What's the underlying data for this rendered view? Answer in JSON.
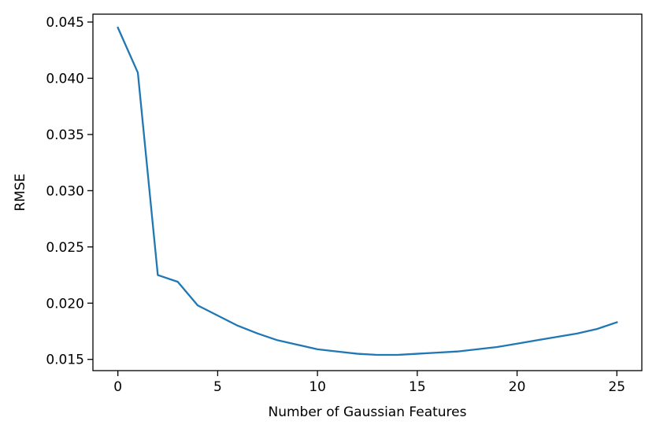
{
  "chart_data": {
    "type": "line",
    "title": "",
    "xlabel": "Number of Gaussian Features",
    "ylabel": "RMSE",
    "xlim": [
      -1.25,
      26.25
    ],
    "ylim": [
      0.014,
      0.0457
    ],
    "x_ticks": [
      0,
      5,
      10,
      15,
      20,
      25
    ],
    "x_tick_labels": [
      "0",
      "5",
      "10",
      "15",
      "20",
      "25"
    ],
    "y_ticks": [
      0.015,
      0.02,
      0.025,
      0.03,
      0.035,
      0.04,
      0.045
    ],
    "y_tick_labels": [
      "0.015",
      "0.020",
      "0.025",
      "0.030",
      "0.035",
      "0.040",
      "0.045"
    ],
    "grid": false,
    "series": [
      {
        "color": "#1f77b4",
        "x": [
          0,
          1,
          2,
          3,
          4,
          5,
          6,
          7,
          8,
          9,
          10,
          11,
          12,
          13,
          14,
          15,
          16,
          17,
          18,
          19,
          20,
          21,
          22,
          23,
          24,
          25
        ],
        "y": [
          0.0445,
          0.0405,
          0.0225,
          0.0219,
          0.0198,
          0.0189,
          0.018,
          0.0173,
          0.0167,
          0.0163,
          0.0159,
          0.0157,
          0.0155,
          0.0154,
          0.0154,
          0.0155,
          0.0156,
          0.0157,
          0.0159,
          0.0161,
          0.0164,
          0.0167,
          0.017,
          0.0173,
          0.0177,
          0.0183
        ]
      }
    ]
  }
}
